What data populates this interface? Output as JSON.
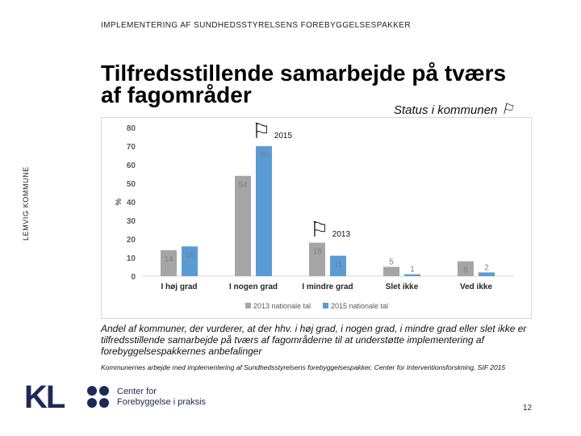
{
  "header": {
    "subtitle": "IMPLEMENTERING AF SUNDHEDSSTYRELSENS FOREBYGGELSESPAKKER"
  },
  "sidebar": {
    "text": "LEMVIG KOMMUNE"
  },
  "slide": {
    "title": "Tilfredsstillende samarbejde på tværs af fagområder",
    "status": "Status i kommunen",
    "flag_icon": "flag-icon",
    "marker_2015": "2015",
    "marker_2013": "2013"
  },
  "chart_data": {
    "type": "bar",
    "categories": [
      "I høj grad",
      "I nogen grad",
      "I mindre grad",
      "Slet ikke",
      "Ved ikke"
    ],
    "series": [
      {
        "name": "2013 nationale tal",
        "values": [
          14,
          54,
          18,
          5,
          8
        ],
        "color": "#a5a5a5"
      },
      {
        "name": "2015 nationale tal",
        "values": [
          16,
          70,
          11,
          1,
          2
        ],
        "color": "#5b9bd5"
      }
    ],
    "title": "",
    "xlabel": "",
    "ylabel": "%",
    "ylim": [
      0,
      80
    ],
    "yticks": [
      0,
      10,
      20,
      30,
      40,
      50,
      60,
      70,
      80
    ],
    "grid": false,
    "legend": "bottom"
  },
  "caption": "Andel af kommuner, der vurderer, at der hhv. i høj grad, i nogen grad, i mindre grad eller slet ikke er tilfredsstillende samarbejde på tværs af fagområderne til at understøtte implementering af forebyggelsespakkernes anbefalinger",
  "source": "Kommunernes arbejde med implementering af Sundhedsstyrelsens forebyggelsespakker, Center for Interventionsforskning, SIF 2015",
  "footer": {
    "kl_logo": "KL",
    "center_line1": "Center for",
    "center_line2": "Forebyggelse i praksis",
    "page_number": "12"
  }
}
